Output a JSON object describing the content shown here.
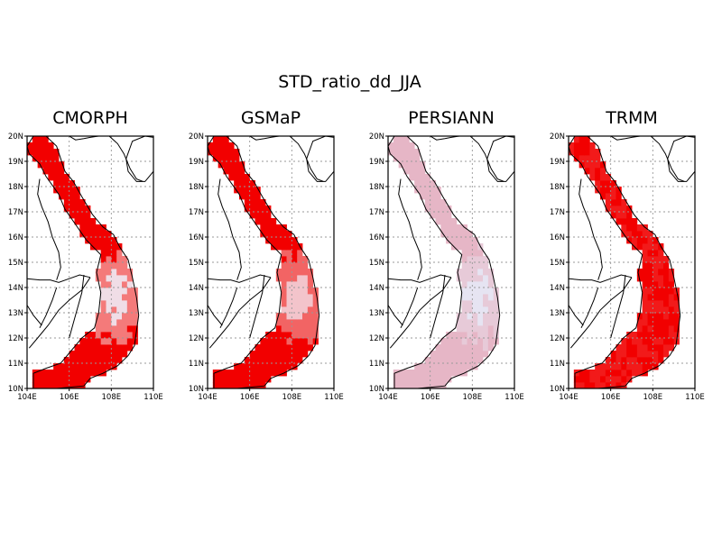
{
  "figure": {
    "title": "STD_ratio_dd_JJA"
  },
  "axes": {
    "lon_ticks": [
      "104E",
      "106E",
      "108E",
      "110E"
    ],
    "lat_ticks": [
      "10N",
      "11N",
      "12N",
      "13N",
      "14N",
      "15N",
      "16N",
      "17N",
      "18N",
      "19N",
      "20N"
    ],
    "lon_range": [
      104,
      110
    ],
    "lat_range": [
      10,
      20
    ],
    "grid": "dotted"
  },
  "panels": [
    {
      "title": "CMORPH",
      "colors": {
        "high": "#f20000",
        "mid": "#f47a7a",
        "low": "#f0dde6"
      }
    },
    {
      "title": "GSMaP",
      "colors": {
        "high": "#f20000",
        "mid": "#f26464",
        "low": "#f3c4cb"
      }
    },
    {
      "title": "PERSIANN",
      "colors": {
        "high": "#e6b6c6",
        "mid": "#e7cad8",
        "low": "#e6e4f2"
      }
    },
    {
      "title": "TRMM",
      "colors": {
        "high": "#f20000",
        "mid": "#f21a1a",
        "low": "#f25a5a"
      }
    }
  ]
}
